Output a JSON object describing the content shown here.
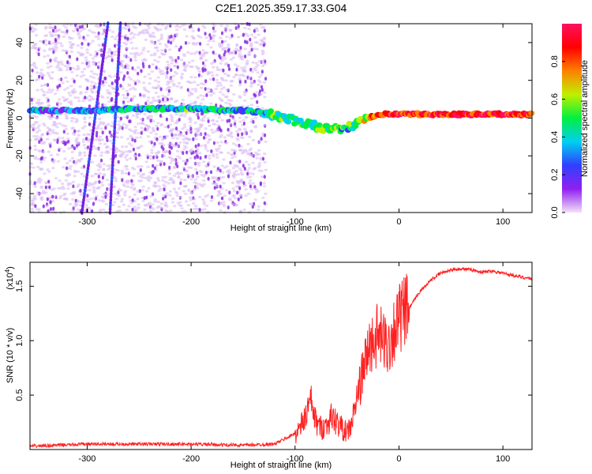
{
  "chart_data": [
    {
      "type": "heatmap",
      "title": "C2E1.2025.359.17.33.G04",
      "xlabel": "Height of straight line (km)",
      "ylabel": "Frequency (Hz)",
      "xlim": [
        -355,
        128
      ],
      "ylim": [
        -50,
        50
      ],
      "xticks": [
        -300,
        -200,
        -100,
        0,
        100
      ],
      "xtick_labels": [
        "-300",
        "-200",
        "-100",
        "0",
        "100"
      ],
      "yticks": [
        -40,
        -20,
        0,
        20,
        40
      ],
      "ytick_labels": [
        "-40",
        "-20",
        "0",
        "20",
        "40"
      ],
      "colorbar": {
        "label": "Normalized spectral amplitude",
        "range": [
          0,
          1
        ],
        "ticks": [
          0.0,
          0.2,
          0.4,
          0.6,
          0.8
        ],
        "tick_labels": [
          "0.0",
          "0.2",
          "0.4",
          "0.6",
          "0.8"
        ],
        "colors": [
          "#f2e0f8",
          "#9020f0",
          "#3040ff",
          "#00d0f0",
          "#00f040",
          "#c0f000",
          "#ff8000",
          "#ff0000",
          "#ff1060"
        ]
      },
      "carrier_track": {
        "x": [
          -355,
          -300,
          -250,
          -200,
          -150,
          -130,
          -110,
          -90,
          -75,
          -60,
          -50,
          -40,
          -30,
          -20,
          -10,
          0,
          25,
          50,
          75,
          100,
          128
        ],
        "freq": [
          4,
          4,
          5,
          5,
          4,
          3,
          0,
          -3,
          -5,
          -6,
          -5,
          -3,
          0,
          2,
          2,
          2,
          2,
          2,
          2,
          2,
          2
        ],
        "amplitude": [
          0.3,
          0.3,
          0.4,
          0.4,
          0.35,
          0.45,
          0.5,
          0.5,
          0.5,
          0.5,
          0.45,
          0.55,
          0.7,
          0.8,
          0.85,
          0.85,
          0.9,
          0.9,
          0.9,
          0.9,
          0.85
        ]
      },
      "streaks": [
        {
          "x_at_top": -280,
          "x_at_bottom": -305
        },
        {
          "x_at_top": -268,
          "x_at_bottom": -278
        }
      ],
      "noise_region": {
        "x_from": -355,
        "x_to": -128
      }
    },
    {
      "type": "line",
      "xlabel": "Height of straight line (km)",
      "ylabel": "SNR (10 * v/v)",
      "yscale_label": "(x10",
      "yscale_exp": "4",
      "xlim": [
        -355,
        128
      ],
      "ylim": [
        0,
        1.72
      ],
      "xticks": [
        -300,
        -200,
        -100,
        0,
        100
      ],
      "xtick_labels": [
        "-300",
        "-200",
        "-100",
        "0",
        "100"
      ],
      "yticks": [
        0.5,
        1.0,
        1.5
      ],
      "ytick_labels": [
        "0.5",
        "1.0",
        "1.5"
      ],
      "line_color": "#ff2020",
      "series": [
        {
          "name": "SNR",
          "x": [
            -355,
            -300,
            -250,
            -200,
            -150,
            -120,
            -105,
            -100,
            -95,
            -90,
            -85,
            -80,
            -75,
            -70,
            -65,
            -60,
            -55,
            -50,
            -45,
            -40,
            -35,
            -30,
            -25,
            -20,
            -15,
            -10,
            -5,
            0,
            5,
            10,
            20,
            30,
            40,
            50,
            60,
            70,
            80,
            90,
            100,
            110,
            120,
            128
          ],
          "y": [
            0.03,
            0.05,
            0.05,
            0.05,
            0.04,
            0.05,
            0.12,
            0.15,
            0.2,
            0.3,
            0.45,
            0.25,
            0.2,
            0.22,
            0.3,
            0.25,
            0.2,
            0.15,
            0.25,
            0.5,
            0.7,
            0.9,
            1.0,
            1.05,
            1.0,
            0.95,
            1.1,
            1.2,
            1.25,
            1.3,
            1.45,
            1.55,
            1.62,
            1.65,
            1.66,
            1.65,
            1.63,
            1.64,
            1.62,
            1.6,
            1.58,
            1.57
          ]
        }
      ]
    }
  ]
}
